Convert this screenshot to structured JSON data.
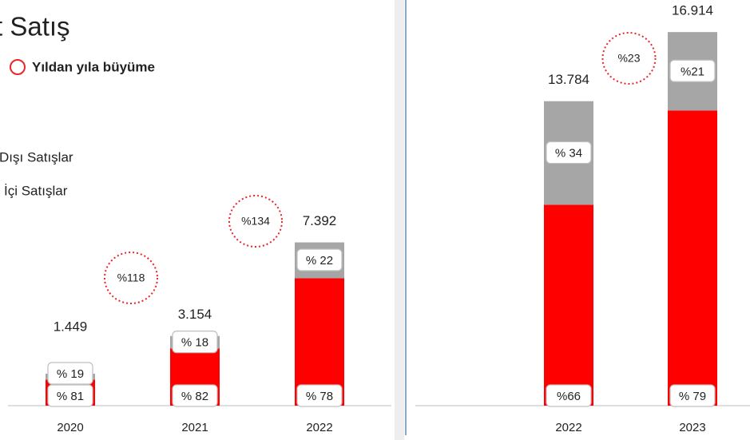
{
  "title": "t Satış",
  "legend": {
    "growth": "Yıldan yıla büyüme",
    "export": "Dışı Satışlar",
    "domestic": "İçi Satışlar"
  },
  "chart_data": [
    {
      "type": "bar",
      "stacked": true,
      "categories": [
        "2020",
        "2021",
        "2022"
      ],
      "totals": {
        "values": [
          1449,
          3154,
          7392
        ],
        "value_labels": [
          "1.449",
          "3.154",
          "7.392"
        ]
      },
      "series": [
        {
          "color": "#ff0000",
          "values": [
            81,
            82,
            78
          ],
          "value_labels": [
            "% 81",
            "% 82",
            "% 78"
          ]
        },
        {
          "color": "#a6a6a6",
          "values": [
            19,
            18,
            22
          ],
          "value_labels": [
            "% 19",
            "% 18",
            "% 22"
          ]
        }
      ],
      "growth": {
        "values": [
          null,
          118,
          134
        ],
        "value_labels": [
          null,
          "%118",
          "%134"
        ]
      }
    },
    {
      "type": "bar",
      "stacked": true,
      "categories": [
        "2022",
        "2023"
      ],
      "totals": {
        "values": [
          13784,
          16914
        ],
        "value_labels": [
          "13.784",
          "16.914"
        ]
      },
      "series": [
        {
          "color": "#ff0000",
          "values": [
            66,
            79
          ],
          "value_labels": [
            "%66",
            "% 79"
          ]
        },
        {
          "color": "#a6a6a6",
          "values": [
            34,
            21
          ],
          "value_labels": [
            "% 34",
            "%21"
          ]
        }
      ],
      "growth": {
        "values": [
          null,
          23
        ],
        "value_labels": [
          null,
          "%23"
        ]
      }
    }
  ]
}
